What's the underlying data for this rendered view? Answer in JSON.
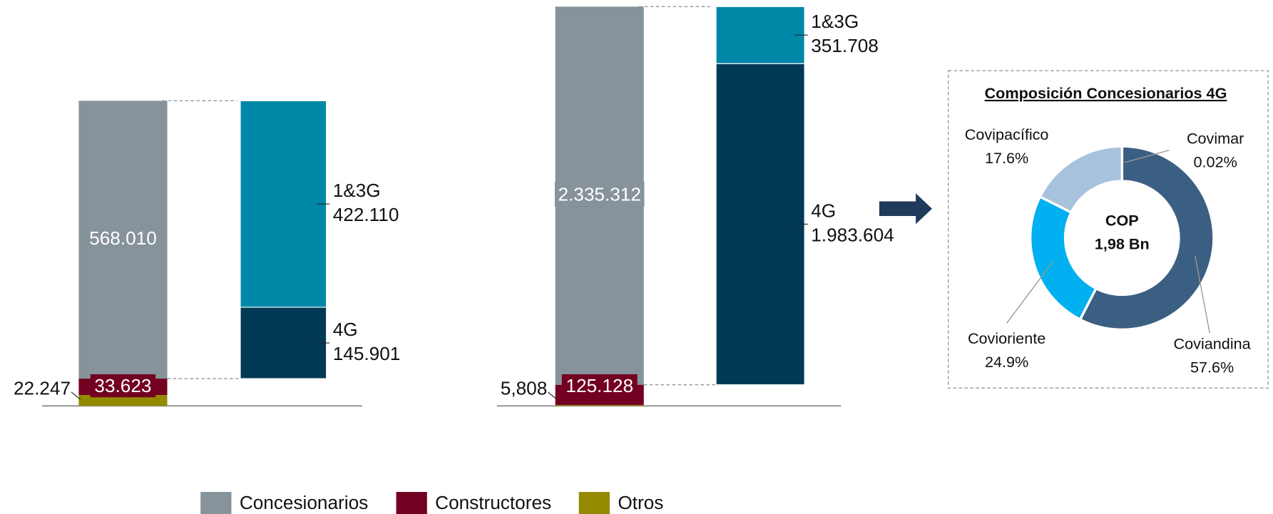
{
  "legend": [
    {
      "name": "Concesionarios",
      "color": "#87939b"
    },
    {
      "name": "Constructores",
      "color": "#720021"
    },
    {
      "name": "Otros",
      "color": "#948a00"
    }
  ],
  "chart_data": [
    {
      "type": "breakdown",
      "values": [
        568010,
        33623,
        22247
      ],
      "value_labels": [
        "568.010",
        "33.623",
        "22.247"
      ],
      "breakdown": [
        {
          "name": "1&3G",
          "value": 422110,
          "value_label": "422.110",
          "color": "#0088a8"
        },
        {
          "name": "4G",
          "value": 145901,
          "value_label": "145.901",
          "color": "#003a55"
        }
      ]
    },
    {
      "type": "breakdown",
      "values": [
        2335312,
        125128,
        5808
      ],
      "value_labels": [
        "2.335.312",
        "125.128",
        "5,808"
      ],
      "breakdown": [
        {
          "name": "1&3G",
          "value": 351708,
          "value_label": "351.708",
          "color": "#0088a8"
        },
        {
          "name": "4G",
          "value": 1983604,
          "value_label": "1.983.604",
          "color": "#003a55"
        }
      ]
    },
    {
      "type": "donut",
      "title": "Composición Concesionarios  4G",
      "center_label": [
        "COP",
        "1,98 Bn"
      ],
      "categories": [
        "Covimar",
        "Coviandina",
        "Covioriente",
        "Covipacífico"
      ],
      "values": [
        0.02,
        57.6,
        24.9,
        17.6
      ],
      "value_labels": [
        "0.02%",
        "57.6%",
        "24.9%",
        "17.6%"
      ],
      "colors": [
        "#1f3a5a",
        "#3a5f82",
        "#00b0f0",
        "#a7c2dc"
      ]
    }
  ]
}
